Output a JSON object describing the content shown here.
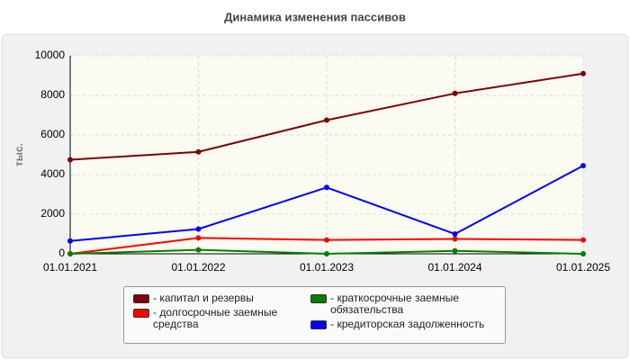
{
  "chart_data": {
    "type": "line",
    "title": "Динамика изменения пассивов",
    "y_label": "тыс.",
    "categories": [
      "01.01.2021",
      "01.01.2022",
      "01.01.2023",
      "01.01.2024",
      "01.01.2025"
    ],
    "series": [
      {
        "name": "- капитал и резервы",
        "color": "#800000",
        "values": [
          4750,
          5150,
          6750,
          8100,
          9100
        ]
      },
      {
        "name": "- долгосрочные заемные средства",
        "color": "#ff0000",
        "values": [
          0,
          800,
          700,
          750,
          700
        ]
      },
      {
        "name": "- краткосрочные заемные обязательства",
        "color": "#008000",
        "values": [
          0,
          200,
          0,
          150,
          0
        ]
      },
      {
        "name": "- кредиторская задолженность",
        "color": "#0000ff",
        "values": [
          650,
          1250,
          3350,
          1000,
          4450
        ]
      }
    ],
    "ylim": [
      0,
      10000
    ],
    "yticks": [
      0,
      2000,
      4000,
      6000,
      8000,
      10000
    ],
    "grid": true
  }
}
